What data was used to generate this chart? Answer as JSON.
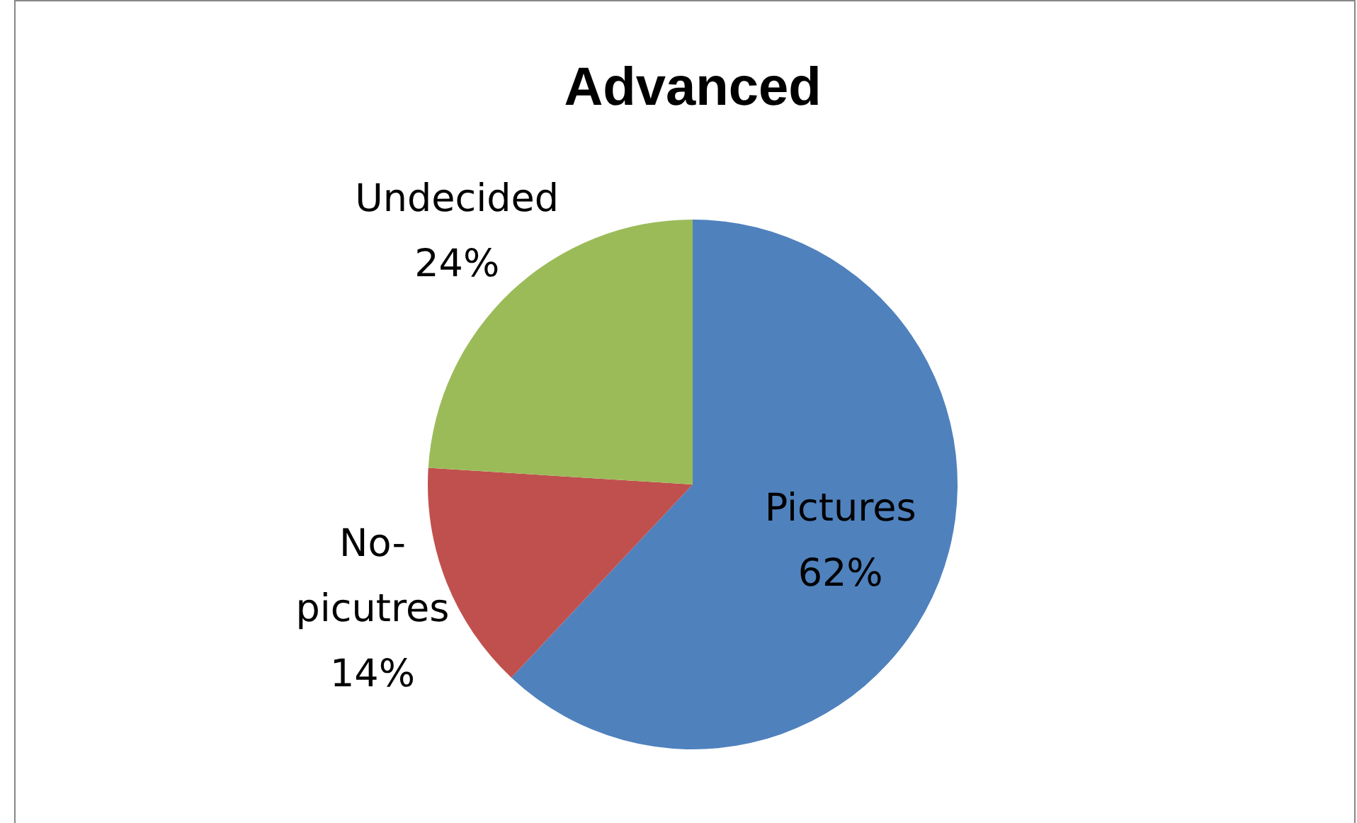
{
  "chart_data": {
    "type": "pie",
    "title": "Advanced",
    "categories": [
      "Pictures",
      "No-picutres",
      "Undecided"
    ],
    "values": [
      62,
      14,
      24
    ],
    "colors": [
      "#4f81bd",
      "#c0504d",
      "#9bbb59"
    ],
    "value_labels": [
      "62%",
      "14%",
      "24%"
    ]
  }
}
